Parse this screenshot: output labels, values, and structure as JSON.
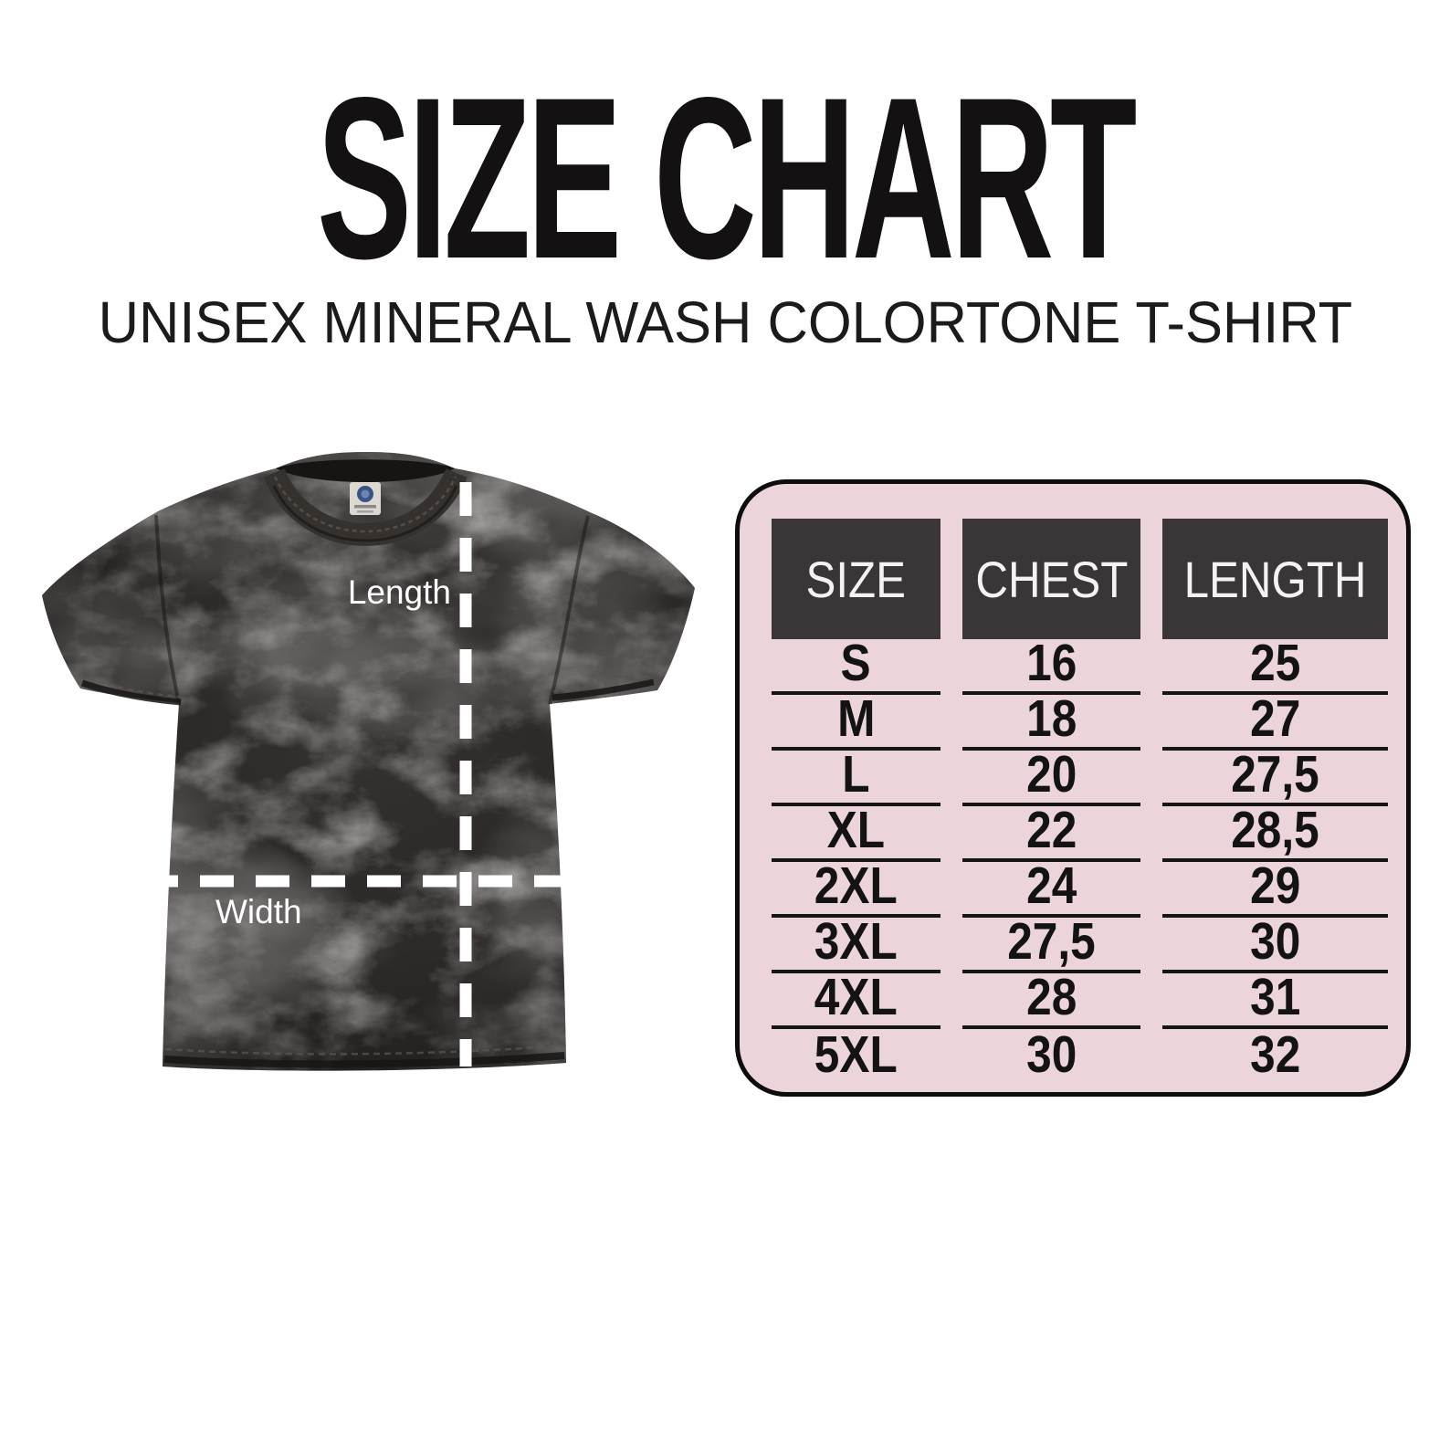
{
  "header": {
    "title": "SIZE CHART",
    "subtitle": "UNISEX MINERAL WASH COLORTONE T-SHIRT"
  },
  "diagram": {
    "length_label": "Length",
    "width_label": "Width"
  },
  "size_table": {
    "columns": [
      "SIZE",
      "CHEST",
      "LENGTH"
    ],
    "rows": [
      [
        "S",
        "16",
        "25"
      ],
      [
        "M",
        "18",
        "27"
      ],
      [
        "L",
        "20",
        "27,5"
      ],
      [
        "XL",
        "22",
        "28,5"
      ],
      [
        "2XL",
        "24",
        "29"
      ],
      [
        "3XL",
        "27,5",
        "30"
      ],
      [
        "4XL",
        "28",
        "31"
      ],
      [
        "5XL",
        "30",
        "32"
      ]
    ]
  },
  "colors": {
    "table_bg": "#ecd5da",
    "table_header_bg": "#3a3637",
    "table_line": "#161616",
    "title_text": "#131112",
    "shirt_base": "#2d2a29",
    "measure_line": "#ffffff"
  },
  "chart_data": {
    "type": "table",
    "title": "SIZE CHART",
    "subtitle": "UNISEX MINERAL WASH COLORTONE T-SHIRT",
    "columns": [
      "SIZE",
      "CHEST",
      "LENGTH"
    ],
    "rows": [
      {
        "size": "S",
        "chest": "16",
        "length": "25"
      },
      {
        "size": "M",
        "chest": "18",
        "length": "27"
      },
      {
        "size": "L",
        "chest": "20",
        "length": "27,5"
      },
      {
        "size": "XL",
        "chest": "22",
        "length": "28,5"
      },
      {
        "size": "2XL",
        "chest": "24",
        "length": "29"
      },
      {
        "size": "3XL",
        "chest": "27,5",
        "length": "30"
      },
      {
        "size": "4XL",
        "chest": "28",
        "length": "31"
      },
      {
        "size": "5XL",
        "chest": "30",
        "length": "32"
      }
    ],
    "annotations": [
      "Length",
      "Width"
    ],
    "legend_position": "none",
    "grid": false
  }
}
